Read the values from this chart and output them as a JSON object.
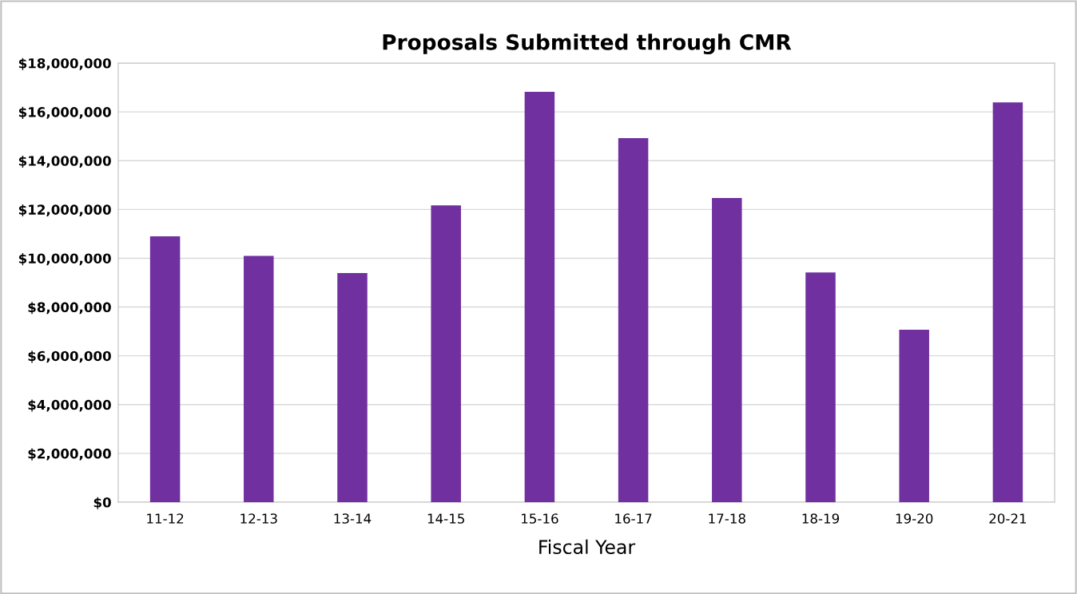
{
  "chart_data": {
    "type": "bar",
    "title": "Proposals Submitted through CMR",
    "xlabel": "Fiscal Year",
    "categories": [
      "11-12",
      "12-13",
      "13-14",
      "14-15",
      "15-16",
      "16-17",
      "17-18",
      "18-19",
      "19-20",
      "20-21"
    ],
    "values": [
      10900000,
      10100000,
      9390000,
      12170000,
      16820000,
      14920000,
      12470000,
      9420000,
      7070000,
      16390000
    ],
    "color": "#7030a0",
    "ylim": [
      0,
      18000000
    ],
    "yticks": [
      {
        "value": 0,
        "label": "$0"
      },
      {
        "value": 2000000,
        "label": "$2,000,000"
      },
      {
        "value": 4000000,
        "label": "$4,000,000"
      },
      {
        "value": 6000000,
        "label": "$6,000,000"
      },
      {
        "value": 8000000,
        "label": "$8,000,000"
      },
      {
        "value": 10000000,
        "label": "$10,000,000"
      },
      {
        "value": 12000000,
        "label": "$12,000,000"
      },
      {
        "value": 14000000,
        "label": "$14,000,000"
      },
      {
        "value": 16000000,
        "label": "$16,000,000"
      },
      {
        "value": 18000000,
        "label": "$18,000,000"
      }
    ],
    "grid": "y"
  }
}
